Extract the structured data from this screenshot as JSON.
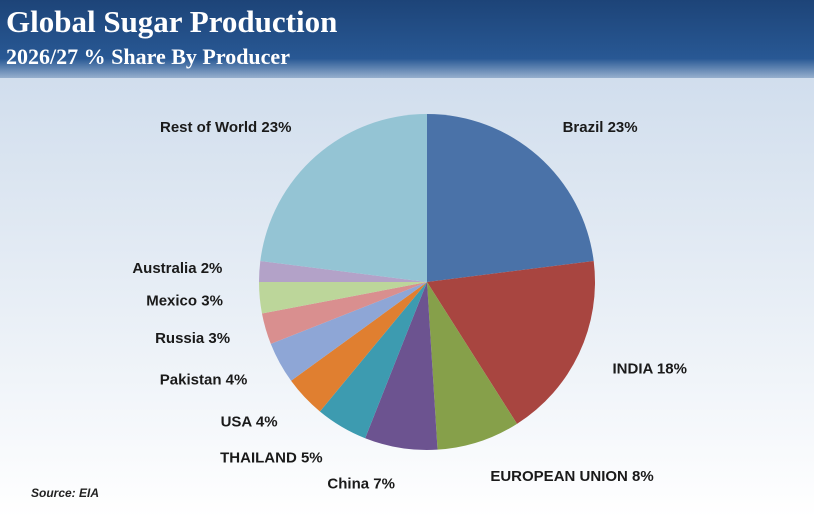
{
  "chart_data": {
    "type": "pie",
    "title": "Global Sugar Production",
    "subtitle": "2026/27 % Share By Producer",
    "source": "Source: EIA",
    "values": [
      23,
      18,
      8,
      7,
      5,
      4,
      4,
      3,
      3,
      2,
      23
    ],
    "value_labels": [
      "Brazil 23%",
      "INDIA 18%",
      "EUROPEAN UNION 8%",
      "China 7%",
      "THAILAND 5%",
      "USA 4%",
      "Pakistan 4%",
      "Russia 3%",
      "Mexico 3%",
      "Australia 2%",
      "Rest of World 23%"
    ],
    "colors": [
      "#4a72a8",
      "#a84540",
      "#86a04a",
      "#6c5390",
      "#3d9bb0",
      "#e07f30",
      "#8ea6d6",
      "#d98f8f",
      "#bcd69a",
      "#b3a2c8",
      "#94c4d4"
    ]
  }
}
